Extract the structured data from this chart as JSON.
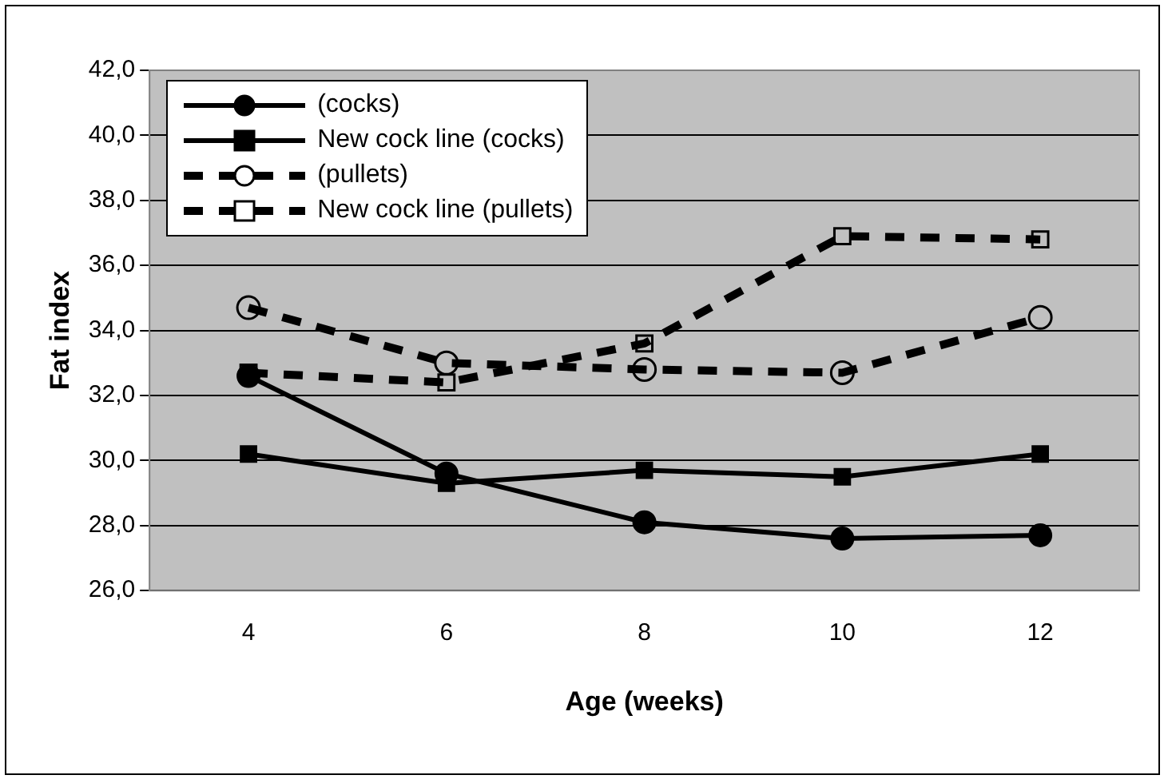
{
  "chart_data": {
    "type": "line",
    "xlabel": "Age (weeks)",
    "ylabel": "Fat index",
    "categories": [
      "4",
      "6",
      "8",
      "10",
      "12"
    ],
    "series": [
      {
        "name": "(cocks)",
        "color": "#000000",
        "values": [
          32.6,
          29.6,
          28.1,
          27.6,
          27.7
        ],
        "marker": "circle",
        "line_style": "solid"
      },
      {
        "name": "New cock line (cocks)",
        "color": "#000000",
        "values": [
          30.2,
          29.3,
          29.7,
          29.5,
          30.2
        ],
        "marker": "square",
        "line_style": "solid"
      },
      {
        "name": "(pullets)",
        "color": "#000000",
        "values": [
          34.7,
          33.0,
          32.8,
          32.7,
          34.4
        ],
        "marker": "circle",
        "line_style": "dashed"
      },
      {
        "name": "New cock line (pullets)",
        "color": "#000000",
        "values": [
          32.7,
          32.4,
          33.6,
          36.9,
          36.8
        ],
        "marker": "square",
        "line_style": "dashed"
      }
    ],
    "ylim": [
      26,
      42
    ],
    "yticks": [
      {
        "value": 26,
        "label": "26,0"
      },
      {
        "value": 28,
        "label": "28,0"
      },
      {
        "value": 30,
        "label": "30,0"
      },
      {
        "value": 32,
        "label": "32,0"
      },
      {
        "value": 34,
        "label": "34,0"
      },
      {
        "value": 36,
        "label": "36,0"
      },
      {
        "value": 38,
        "label": "38,0"
      },
      {
        "value": 40,
        "label": "40,0"
      },
      {
        "value": 42,
        "label": "42,0"
      }
    ],
    "grid": "y",
    "legend": "top left"
  }
}
